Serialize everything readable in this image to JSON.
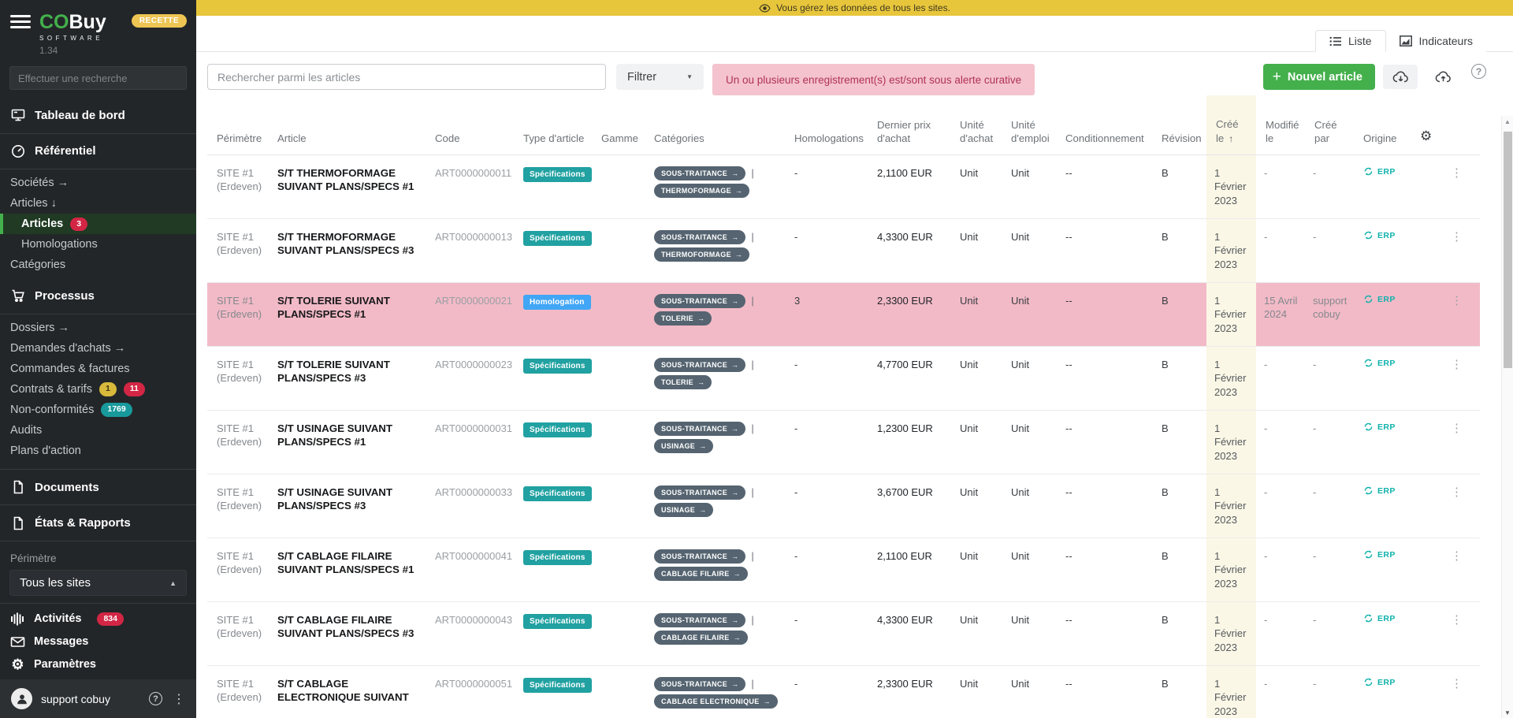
{
  "banner": {
    "text": "Vous gérez les données de tous les sites."
  },
  "sidebar": {
    "brand": {
      "co": "CO",
      "buy": "Buy",
      "subtitle": "SOFTWARE",
      "version": "1.34",
      "env": "RECETTE"
    },
    "search_placeholder": "Effectuer une recherche",
    "dashboard": "Tableau de bord",
    "referentiel": "Référentiel",
    "societes": "Sociétés",
    "societes_arrow": "→",
    "articles_group": "Articles",
    "articles_group_arrow": "↓",
    "articles": "Articles",
    "articles_badge": "3",
    "homologations": "Homologations",
    "categories": "Catégories",
    "processus": "Processus",
    "dossiers": "Dossiers",
    "dossiers_arrow": "→",
    "demandes": "Demandes d'achats",
    "demandes_arrow": "→",
    "commandes": "Commandes & factures",
    "contrats": "Contrats & tarifs",
    "contrats_badge1": "1",
    "contrats_badge2": "11",
    "nonconformites": "Non-conformités",
    "nonconformites_badge": "1769",
    "audits": "Audits",
    "plans": "Plans d'action",
    "documents": "Documents",
    "etats": "États & Rapports",
    "perimetre_label": "Périmètre",
    "site_selector": "Tous les sites",
    "activites": "Activités",
    "activites_badge": "834",
    "messages": "Messages",
    "parametres": "Paramètres",
    "user": "support cobuy"
  },
  "tabs": {
    "liste": "Liste",
    "indicateurs": "Indicateurs"
  },
  "toolbar": {
    "search_placeholder": "Rechercher parmi les articles",
    "filter_label": "Filtrer",
    "alert_text": "Un ou plusieurs enregistrement(s) est/sont sous alerte curative",
    "new_article_label": "Nouvel article"
  },
  "table": {
    "headers": [
      "Périmètre",
      "Article",
      "Code",
      "Type d'article",
      "Gamme",
      "Catégories",
      "Homologations",
      "Dernier prix d'achat",
      "Unité d'achat",
      "Unité d'emploi",
      "Conditionnement",
      "Révision",
      "Créé le",
      "Modifié le",
      "Créé par",
      "Origine"
    ],
    "rows": [
      {
        "perimetre": "SITE #1 (Erdeven)",
        "article": "S/T THERMOFORMAGE SUIVANT PLANS/SPECS #1",
        "code": "ART0000000011",
        "type": "Spécifications",
        "gamme": "",
        "categories": [
          "SOUS-TRAITANCE",
          "THERMOFORMAGE"
        ],
        "homologations": "-",
        "prix": "2,1100 EUR",
        "unite_achat": "Unit",
        "unite_emploi": "Unit",
        "conditionnement": "--",
        "revision": "B",
        "cree_le": "1 Février 2023",
        "modifie_le": "-",
        "cree_par": "-",
        "origine": "ERP",
        "highlighted": false
      },
      {
        "perimetre": "SITE #1 (Erdeven)",
        "article": "S/T THERMOFORMAGE SUIVANT PLANS/SPECS #3",
        "code": "ART0000000013",
        "type": "Spécifications",
        "gamme": "",
        "categories": [
          "SOUS-TRAITANCE",
          "THERMOFORMAGE"
        ],
        "homologations": "-",
        "prix": "4,3300 EUR",
        "unite_achat": "Unit",
        "unite_emploi": "Unit",
        "conditionnement": "--",
        "revision": "B",
        "cree_le": "1 Février 2023",
        "modifie_le": "-",
        "cree_par": "-",
        "origine": "ERP",
        "highlighted": false
      },
      {
        "perimetre": "SITE #1 (Erdeven)",
        "article": "S/T TOLERIE SUIVANT PLANS/SPECS #1",
        "code": "ART0000000021",
        "type": "Homologation",
        "gamme": "",
        "categories": [
          "SOUS-TRAITANCE",
          "TOLERIE"
        ],
        "homologations": "3",
        "prix": "2,3300 EUR",
        "unite_achat": "Unit",
        "unite_emploi": "Unit",
        "conditionnement": "--",
        "revision": "B",
        "cree_le": "1 Février 2023",
        "modifie_le": "15 Avril 2024",
        "cree_par": "support cobuy",
        "origine": "ERP",
        "highlighted": true
      },
      {
        "perimetre": "SITE #1 (Erdeven)",
        "article": "S/T TOLERIE SUIVANT PLANS/SPECS #3",
        "code": "ART0000000023",
        "type": "Spécifications",
        "gamme": "",
        "categories": [
          "SOUS-TRAITANCE",
          "TOLERIE"
        ],
        "homologations": "-",
        "prix": "4,7700 EUR",
        "unite_achat": "Unit",
        "unite_emploi": "Unit",
        "conditionnement": "--",
        "revision": "B",
        "cree_le": "1 Février 2023",
        "modifie_le": "-",
        "cree_par": "-",
        "origine": "ERP",
        "highlighted": false
      },
      {
        "perimetre": "SITE #1 (Erdeven)",
        "article": "S/T USINAGE SUIVANT PLANS/SPECS #1",
        "code": "ART0000000031",
        "type": "Spécifications",
        "gamme": "",
        "categories": [
          "SOUS-TRAITANCE",
          "USINAGE"
        ],
        "homologations": "-",
        "prix": "1,2300 EUR",
        "unite_achat": "Unit",
        "unite_emploi": "Unit",
        "conditionnement": "--",
        "revision": "B",
        "cree_le": "1 Février 2023",
        "modifie_le": "-",
        "cree_par": "-",
        "origine": "ERP",
        "highlighted": false
      },
      {
        "perimetre": "SITE #1 (Erdeven)",
        "article": "S/T USINAGE SUIVANT PLANS/SPECS #3",
        "code": "ART0000000033",
        "type": "Spécifications",
        "gamme": "",
        "categories": [
          "SOUS-TRAITANCE",
          "USINAGE"
        ],
        "homologations": "-",
        "prix": "3,6700 EUR",
        "unite_achat": "Unit",
        "unite_emploi": "Unit",
        "conditionnement": "--",
        "revision": "B",
        "cree_le": "1 Février 2023",
        "modifie_le": "-",
        "cree_par": "-",
        "origine": "ERP",
        "highlighted": false
      },
      {
        "perimetre": "SITE #1 (Erdeven)",
        "article": "S/T CABLAGE FILAIRE SUIVANT PLANS/SPECS #1",
        "code": "ART0000000041",
        "type": "Spécifications",
        "gamme": "",
        "categories": [
          "SOUS-TRAITANCE",
          "CABLAGE FILAIRE"
        ],
        "homologations": "-",
        "prix": "2,1100 EUR",
        "unite_achat": "Unit",
        "unite_emploi": "Unit",
        "conditionnement": "--",
        "revision": "B",
        "cree_le": "1 Février 2023",
        "modifie_le": "-",
        "cree_par": "-",
        "origine": "ERP",
        "highlighted": false
      },
      {
        "perimetre": "SITE #1 (Erdeven)",
        "article": "S/T CABLAGE FILAIRE SUIVANT PLANS/SPECS #3",
        "code": "ART0000000043",
        "type": "Spécifications",
        "gamme": "",
        "categories": [
          "SOUS-TRAITANCE",
          "CABLAGE FILAIRE"
        ],
        "homologations": "-",
        "prix": "4,3300 EUR",
        "unite_achat": "Unit",
        "unite_emploi": "Unit",
        "conditionnement": "--",
        "revision": "B",
        "cree_le": "1 Février 2023",
        "modifie_le": "-",
        "cree_par": "-",
        "origine": "ERP",
        "highlighted": false
      },
      {
        "perimetre": "SITE #1 (Erdeven)",
        "article": "S/T CABLAGE ELECTRONIQUE SUIVANT",
        "code": "ART0000000051",
        "type": "Spécifications",
        "gamme": "",
        "categories": [
          "SOUS-TRAITANCE",
          "CABLAGE ELECTRONIQUE"
        ],
        "homologations": "-",
        "prix": "2,3300 EUR",
        "unite_achat": "Unit",
        "unite_emploi": "Unit",
        "conditionnement": "--",
        "revision": "B",
        "cree_le": "1 Février 2023",
        "modifie_le": "-",
        "cree_par": "-",
        "origine": "ERP",
        "highlighted": false
      }
    ]
  },
  "colors": {
    "banner_bg": "#e8c63c",
    "accent_green": "#44b04c",
    "badge_specifications": "#21a1a1",
    "badge_homologation": "#41a6f5",
    "tag_bg": "#556470",
    "alert_bg": "#f4c3ce",
    "alert_text": "#b03254",
    "row_highlight": "#f2bac7",
    "cree_col_bg": "#fbf7e6",
    "origin_teal": "#10b2ab",
    "badge_red": "#d32645",
    "badge_yellow": "#d8b93c",
    "badge_teal": "#189a9c",
    "sidebar_bg": "#232629",
    "active_item_bg": "#203a23"
  }
}
